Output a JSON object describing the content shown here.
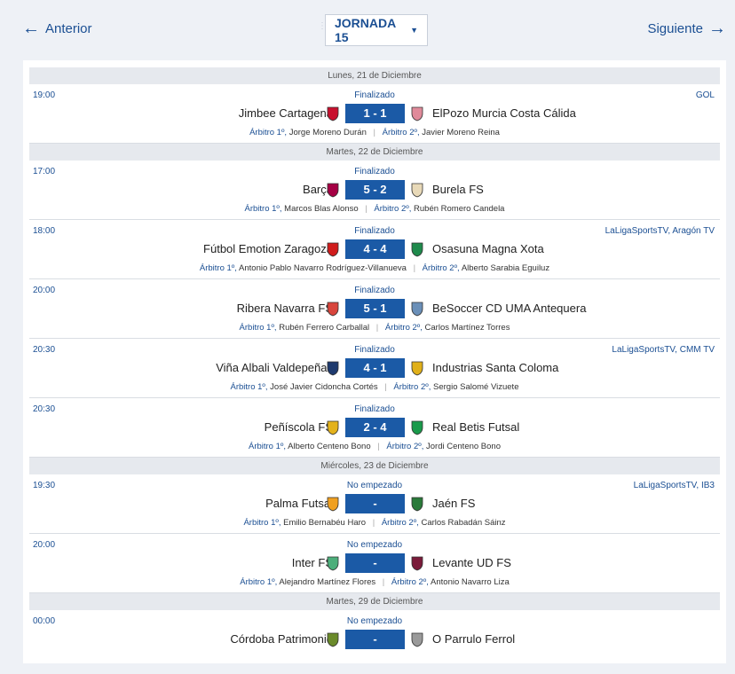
{
  "nav": {
    "prev_label": "Anterior",
    "next_label": "Siguiente",
    "jornada_label": "JORNADA 15"
  },
  "colors": {
    "accent": "#1b5aa6",
    "link": "#1b4f93",
    "day_bg": "#e6e9ee"
  },
  "days": [
    {
      "label": "Lunes, 21 de Diciembre",
      "matches": [
        {
          "time": "19:00",
          "status": "Finalizado",
          "tv": "GOL",
          "home": "Jimbee Cartagena",
          "away": "ElPozo Murcia Costa Cálida",
          "score": "1 - 1",
          "ref1_label": "Árbitro 1º,",
          "ref1": "Jorge Moreno Durán",
          "ref2_label": "Árbitro 2º,",
          "ref2": "Javier Moreno Reina",
          "home_color": "#c8102e",
          "away_color": "#e08a9a"
        }
      ]
    },
    {
      "label": "Martes, 22 de Diciembre",
      "matches": [
        {
          "time": "17:00",
          "status": "Finalizado",
          "tv": "",
          "home": "Barça",
          "away": "Burela FS",
          "score": "5 - 2",
          "ref1_label": "Árbitro 1º,",
          "ref1": "Marcos Blas Alonso",
          "ref2_label": "Árbitro 2º,",
          "ref2": "Rubén Romero Candela",
          "home_color": "#a50044",
          "away_color": "#e8d9b8"
        },
        {
          "time": "18:00",
          "status": "Finalizado",
          "tv": "LaLigaSportsTV, Aragón TV",
          "home": "Fútbol Emotion Zaragoza",
          "away": "Osasuna Magna Xota",
          "score": "4 - 4",
          "ref1_label": "Árbitro 1º,",
          "ref1": "Antonio Pablo Navarro Rodríguez-Villanueva",
          "ref2_label": "Árbitro 2º,",
          "ref2": "Alberto Sarabia Eguiluz",
          "home_color": "#d01c1c",
          "away_color": "#1f8a4c"
        },
        {
          "time": "20:00",
          "status": "Finalizado",
          "tv": "",
          "home": "Ribera Navarra FS",
          "away": "BeSoccer CD UMA Antequera",
          "score": "5 - 1",
          "ref1_label": "Árbitro 1º,",
          "ref1": "Rubén Ferrero Carballal",
          "ref2_label": "Árbitro 2º,",
          "ref2": "Carlos Martínez Torres",
          "home_color": "#d8453c",
          "away_color": "#6a8fb8"
        },
        {
          "time": "20:30",
          "status": "Finalizado",
          "tv": "LaLigaSportsTV, CMM TV",
          "home": "Viña Albali Valdepeñas",
          "away": "Industrias Santa Coloma",
          "score": "4 - 1",
          "ref1_label": "Árbitro 1º,",
          "ref1": "José Javier Cidoncha Cortés",
          "ref2_label": "Árbitro 2º,",
          "ref2": "Sergio Salomé Vizuete",
          "home_color": "#1e3a6e",
          "away_color": "#e0b01a"
        },
        {
          "time": "20:30",
          "status": "Finalizado",
          "tv": "",
          "home": "Peñíscola FS",
          "away": "Real Betis Futsal",
          "score": "2 - 4",
          "ref1_label": "Árbitro 1º,",
          "ref1": "Alberto Centeno Bono",
          "ref2_label": "Árbitro 2º,",
          "ref2": "Jordi Centeno Bono",
          "home_color": "#e3b21c",
          "away_color": "#1a9a4b"
        }
      ]
    },
    {
      "label": "Miércoles, 23 de Diciembre",
      "matches": [
        {
          "time": "19:30",
          "status": "No empezado",
          "tv": "LaLigaSportsTV, IB3",
          "home": "Palma Futsal",
          "away": "Jaén FS",
          "score": "-",
          "ref1_label": "Árbitro 1º,",
          "ref1": "Emilio Bernabéu Haro",
          "ref2_label": "Árbitro 2º,",
          "ref2": "Carlos Rabadán Sáinz",
          "home_color": "#f0a020",
          "away_color": "#2a7a3a"
        },
        {
          "time": "20:00",
          "status": "No empezado",
          "tv": "",
          "home": "Inter FS",
          "away": "Levante UD FS",
          "score": "-",
          "ref1_label": "Árbitro 1º,",
          "ref1": "Alejandro Martínez Flores",
          "ref2_label": "Árbitro 2º,",
          "ref2": "Antonio Navarro Liza",
          "home_color": "#4cae7a",
          "away_color": "#7a1b3a"
        }
      ]
    },
    {
      "label": "Martes, 29 de Diciembre",
      "matches": [
        {
          "time": "00:00",
          "status": "No empezado",
          "tv": "",
          "home": "Córdoba Patrimonio",
          "away": "O Parrulo Ferrol",
          "score": "-",
          "ref1_label": "",
          "ref1": "",
          "ref2_label": "",
          "ref2": "",
          "home_color": "#6a8a2a",
          "away_color": "#9a9a9a"
        }
      ]
    }
  ]
}
